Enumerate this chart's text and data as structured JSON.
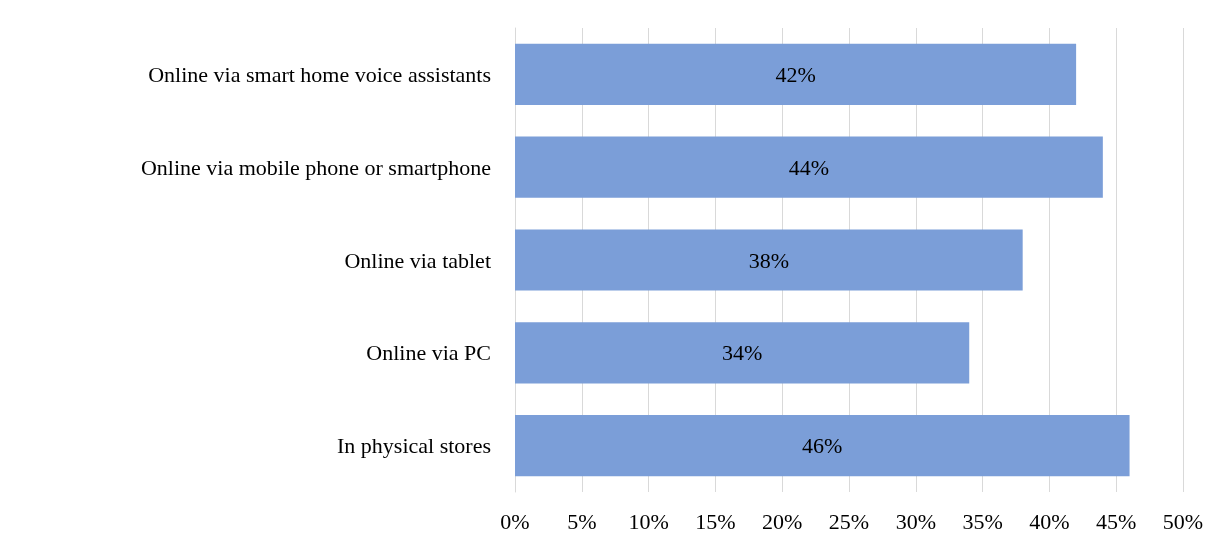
{
  "chart_data": {
    "type": "bar",
    "orientation": "horizontal",
    "categories": [
      "Online via smart home voice assistants",
      "Online via mobile phone or smartphone",
      "Online via tablet",
      "Online via PC",
      "In physical stores"
    ],
    "values": [
      42,
      44,
      38,
      34,
      46
    ],
    "value_labels": [
      "42%",
      "44%",
      "38%",
      "34%",
      "46%"
    ],
    "color": "#7b9ed8",
    "xlim": [
      0,
      50
    ],
    "xticks": [
      {
        "value": 0,
        "label": "0%"
      },
      {
        "value": 5,
        "label": "5%"
      },
      {
        "value": 10,
        "label": "10%"
      },
      {
        "value": 15,
        "label": "15%"
      },
      {
        "value": 20,
        "label": "20%"
      },
      {
        "value": 25,
        "label": "25%"
      },
      {
        "value": 30,
        "label": "30%"
      },
      {
        "value": 35,
        "label": "35%"
      },
      {
        "value": 40,
        "label": "40%"
      },
      {
        "value": 45,
        "label": "45%"
      },
      {
        "value": 50,
        "label": "50%"
      }
    ],
    "grid": "x"
  }
}
